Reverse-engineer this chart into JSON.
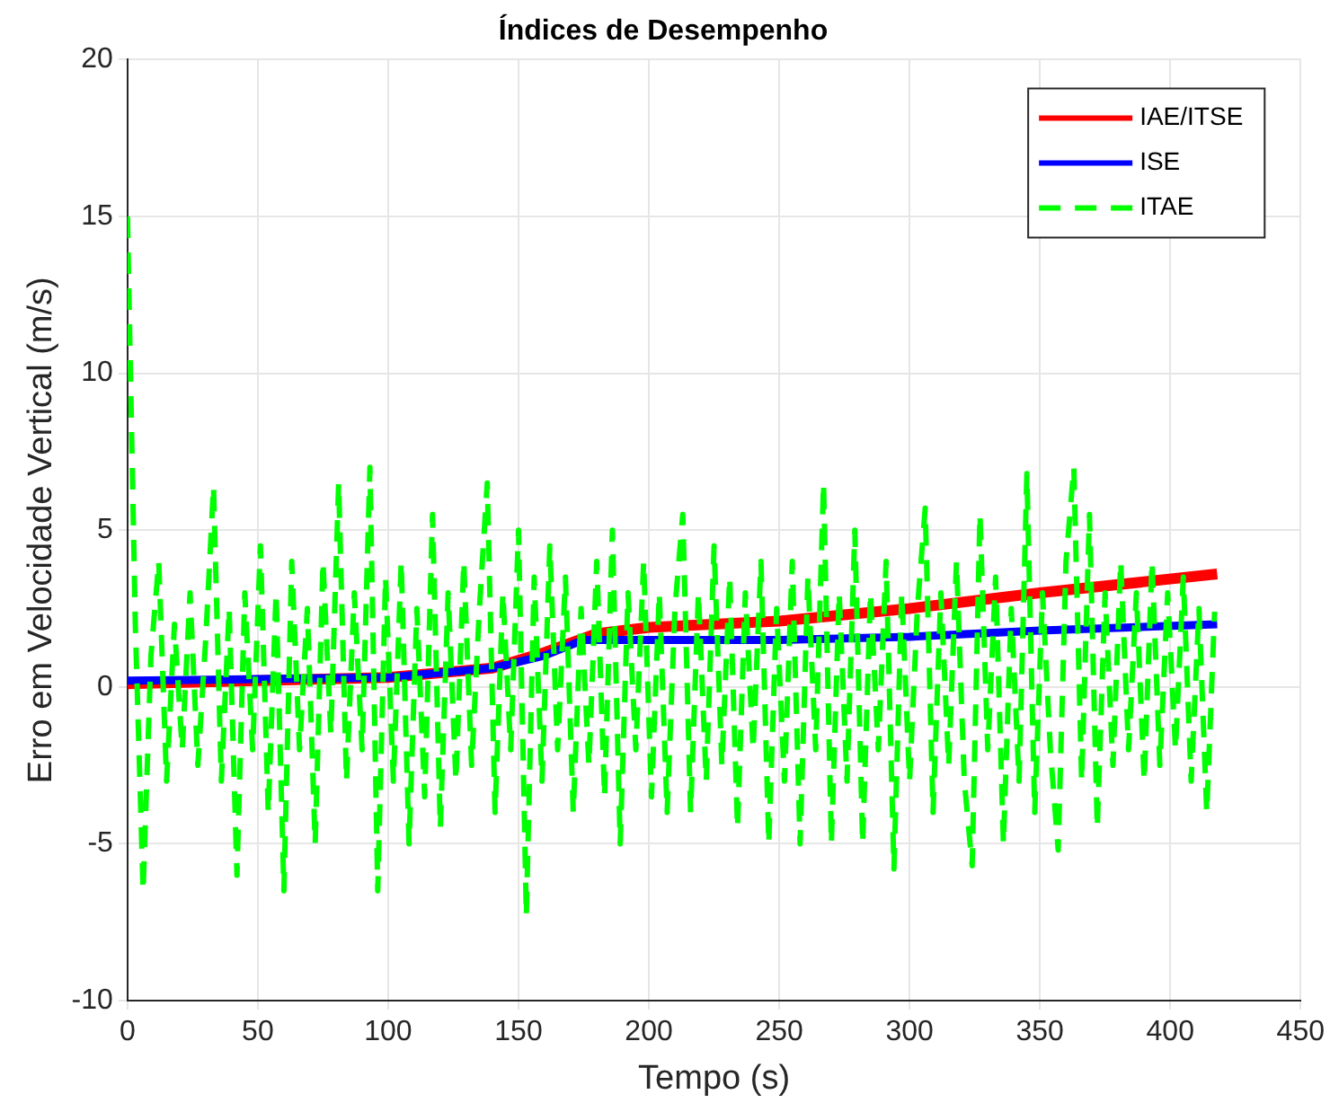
{
  "chart_data": {
    "type": "line",
    "title": "Índices de Desempenho",
    "xlabel": "Tempo (s)",
    "ylabel": "Erro em Velocidade Vertical (m/s)",
    "xlim": [
      0,
      450
    ],
    "xticks": [
      0,
      50,
      100,
      150,
      200,
      250,
      300,
      350,
      400,
      450
    ],
    "ylim": [
      -10,
      20
    ],
    "yticks": [
      -10,
      -5,
      0,
      5,
      10,
      15,
      20
    ],
    "grid": true,
    "legend": "top right",
    "marker": "none",
    "series": [
      {
        "name": "IAE/ITSE",
        "color": "#ff0000",
        "line_style": "solid",
        "x": [
          0,
          50,
          100,
          140,
          160,
          180,
          200,
          250,
          300,
          350,
          418
        ],
        "values": [
          0.1,
          0.2,
          0.3,
          0.6,
          1.1,
          1.7,
          1.9,
          2.1,
          2.5,
          3.0,
          3.6
        ]
      },
      {
        "name": "ISE",
        "color": "#0000ff",
        "line_style": "solid",
        "x": [
          0,
          50,
          100,
          140,
          160,
          175,
          200,
          250,
          300,
          350,
          418
        ],
        "values": [
          0.2,
          0.25,
          0.3,
          0.6,
          1.0,
          1.5,
          1.5,
          1.5,
          1.6,
          1.8,
          2.0
        ]
      },
      {
        "name": "ITAE",
        "color": "#00ff00",
        "line_style": "dashed",
        "x": [
          0,
          3,
          6,
          9,
          12,
          15,
          18,
          21,
          24,
          27,
          30,
          33,
          36,
          39,
          42,
          45,
          48,
          51,
          54,
          57,
          60,
          63,
          66,
          69,
          72,
          75,
          78,
          81,
          84,
          87,
          90,
          93,
          96,
          99,
          102,
          105,
          108,
          111,
          114,
          117,
          120,
          123,
          126,
          129,
          132,
          135,
          138,
          141,
          144,
          147,
          150,
          153,
          156,
          159,
          162,
          165,
          168,
          171,
          174,
          177,
          180,
          183,
          186,
          189,
          192,
          195,
          198,
          201,
          204,
          207,
          210,
          213,
          216,
          219,
          222,
          225,
          228,
          231,
          234,
          237,
          240,
          243,
          246,
          249,
          252,
          255,
          258,
          261,
          264,
          267,
          270,
          273,
          276,
          279,
          282,
          285,
          288,
          291,
          294,
          297,
          300,
          303,
          306,
          309,
          312,
          315,
          318,
          321,
          324,
          327,
          330,
          333,
          336,
          339,
          342,
          345,
          348,
          351,
          354,
          357,
          360,
          363,
          366,
          369,
          372,
          375,
          378,
          381,
          384,
          387,
          390,
          393,
          396,
          399,
          402,
          405,
          408,
          411,
          414,
          417
        ],
        "values": [
          15,
          2,
          -6.5,
          1,
          4,
          -3,
          2,
          -2,
          3,
          -2.5,
          1.5,
          6.4,
          -3,
          2.5,
          -6,
          3,
          -2,
          4.5,
          -4,
          3,
          -6.5,
          4,
          -2,
          2.5,
          -5,
          4,
          -1.5,
          6.5,
          -3,
          3,
          -2,
          7,
          -6.5,
          3.5,
          -3,
          4,
          -5,
          2.5,
          -3.5,
          5.5,
          -4.5,
          3,
          -3,
          4,
          -2.5,
          2.5,
          6.5,
          -4,
          3,
          -2,
          5,
          -7.3,
          3.5,
          -3,
          4.5,
          -2,
          3.5,
          -4,
          2.5,
          -2.5,
          4,
          -3.5,
          5,
          -5,
          3,
          -2,
          4,
          -3.5,
          3,
          -4,
          2.5,
          5.5,
          -4,
          3,
          -3,
          4.5,
          -2.5,
          3.5,
          -4.5,
          3,
          -2,
          4,
          -5,
          2.5,
          -3,
          4,
          -5,
          3.5,
          -2,
          6.5,
          -5,
          3,
          -3,
          5,
          -5,
          3,
          -2,
          4,
          -5.8,
          3,
          -3,
          2.5,
          5.7,
          -4,
          3,
          -2.5,
          4,
          -3,
          -5.7,
          5.5,
          -2,
          3.5,
          -5,
          2.5,
          -3,
          6.8,
          -4,
          3,
          -2,
          -5.2,
          4,
          7,
          -3,
          5.5,
          -4.5,
          3,
          -2.5,
          4,
          -2,
          3,
          -3,
          4,
          -2.5,
          3,
          -2,
          3.5,
          -3,
          2.5,
          -4,
          2.4
        ]
      }
    ]
  }
}
